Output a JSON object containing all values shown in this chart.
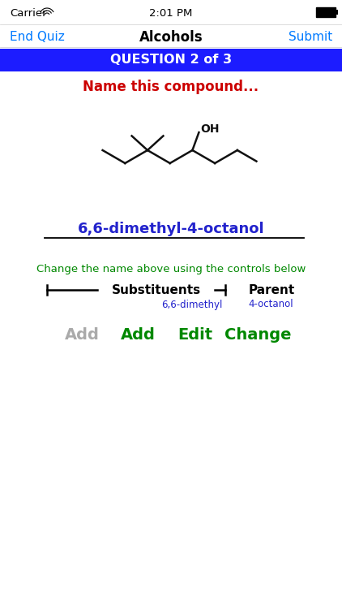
{
  "bg_color": "#ffffff",
  "status_bar": {
    "carrier": "Carrier",
    "time": "2:01 PM",
    "text_color": "#000000"
  },
  "nav_bar": {
    "title": "Alcohols",
    "left_btn": "End Quiz",
    "right_btn": "Submit",
    "btn_color": "#007AFF",
    "title_color": "#000000"
  },
  "question_bar": {
    "text": "QUESTION 2 of 3",
    "bg_color": "#1c1cff",
    "text_color": "#ffffff"
  },
  "prompt": {
    "text": "Name this compound...",
    "color": "#cc0000"
  },
  "compound_name": {
    "text": "6,6-dimethyl-4-octanol",
    "color": "#2222cc"
  },
  "instruction": {
    "text": "Change the name above using the controls below",
    "color": "#008800"
  },
  "bracket_label": "Substituents",
  "parent_label": "Parent",
  "sub_value": "6,6-dimethyl",
  "sub_value_color": "#2222cc",
  "parent_value": "4-octanol",
  "parent_value_color": "#2222cc",
  "btn_add_gray": "Add",
  "btn_add": "Add",
  "btn_edit": "Edit",
  "btn_change": "Change",
  "btn_color_green": "#008800",
  "btn_color_gray": "#aaaaaa",
  "struct_color": "#111111",
  "lw": 1.8
}
